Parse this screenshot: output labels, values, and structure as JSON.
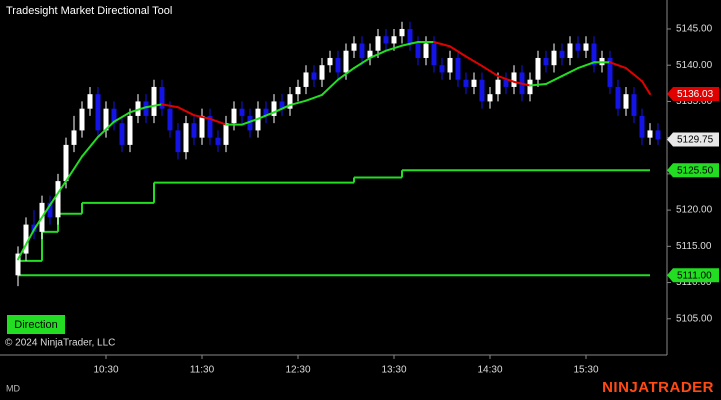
{
  "title": "Tradesight Market Directional Tool",
  "copyright": "© 2024 NinjaTrader, LLC",
  "direction_label": "Direction",
  "footer_left": "MD",
  "brand": "NINJATRADER",
  "chart_data": {
    "type": "candlestick",
    "up_color": "#ffffff",
    "down_color": "#1414e6",
    "open": [
      5111,
      5114,
      5118,
      5117,
      5121,
      5119,
      5124,
      5129,
      5131,
      5134,
      5136,
      5131,
      5134,
      5132,
      5129,
      5133,
      5135,
      5133,
      5137,
      5134,
      5131,
      5128,
      5132,
      5130,
      5133,
      5130,
      5129,
      5132,
      5134,
      5133,
      5131,
      5134,
      5133,
      5135,
      5134,
      5136,
      5137,
      5139,
      5138,
      5140,
      5141,
      5139,
      5142,
      5143,
      5141,
      5142,
      5144,
      5143,
      5144,
      5145,
      5143,
      5141,
      5143,
      5140,
      5139,
      5141,
      5138,
      5137,
      5138,
      5135,
      5136,
      5138,
      5137,
      5139,
      5136,
      5138,
      5141,
      5140,
      5142,
      5141,
      5143,
      5142,
      5143,
      5140,
      5141,
      5137,
      5134,
      5136,
      5133,
      5130,
      5131
    ],
    "high": [
      5115,
      5119,
      5120,
      5122,
      5122,
      5125,
      5130,
      5133,
      5135,
      5137,
      5137,
      5135,
      5135,
      5133,
      5134,
      5136,
      5136,
      5138,
      5138,
      5135,
      5132,
      5133,
      5133,
      5134,
      5134,
      5131,
      5133,
      5135,
      5135,
      5134,
      5135,
      5135,
      5136,
      5136,
      5137,
      5138,
      5140,
      5140,
      5141,
      5142,
      5142,
      5143,
      5144,
      5144,
      5143,
      5145,
      5145,
      5145,
      5146,
      5146,
      5144,
      5144,
      5144,
      5141,
      5142,
      5142,
      5139,
      5139,
      5139,
      5137,
      5139,
      5139,
      5140,
      5140,
      5139,
      5142,
      5142,
      5143,
      5143,
      5144,
      5144,
      5144,
      5144,
      5142,
      5142,
      5138,
      5137,
      5137,
      5134,
      5132,
      5132
    ],
    "low": [
      5109.5,
      5113,
      5116,
      5116,
      5118,
      5118,
      5123,
      5128,
      5130,
      5133,
      5130,
      5130,
      5131,
      5128,
      5128,
      5132,
      5132,
      5132,
      5133,
      5130,
      5127,
      5127,
      5129,
      5129,
      5129,
      5128,
      5128,
      5131,
      5132,
      5130,
      5130,
      5132,
      5132,
      5133,
      5133,
      5135,
      5136,
      5137,
      5137,
      5139,
      5138,
      5138,
      5141,
      5140,
      5140,
      5141,
      5142,
      5142,
      5143,
      5142,
      5140,
      5140,
      5139,
      5138,
      5138,
      5137,
      5136,
      5136,
      5134,
      5134,
      5135,
      5136,
      5136,
      5135,
      5135,
      5137,
      5139,
      5139,
      5140,
      5140,
      5141,
      5141,
      5139,
      5139,
      5136,
      5133,
      5133,
      5132,
      5129,
      5129,
      5129
    ],
    "close": [
      5114,
      5118,
      5117,
      5121,
      5119,
      5124,
      5129,
      5131,
      5134,
      5136,
      5131,
      5134,
      5132,
      5129,
      5133,
      5135,
      5133,
      5137,
      5134,
      5131,
      5128,
      5132,
      5130,
      5133,
      5130,
      5129,
      5132,
      5134,
      5133,
      5131,
      5134,
      5133,
      5135,
      5134,
      5136,
      5137,
      5139,
      5138,
      5140,
      5141,
      5139,
      5142,
      5143,
      5141,
      5142,
      5144,
      5143,
      5144,
      5145,
      5143,
      5141,
      5143,
      5140,
      5139,
      5141,
      5138,
      5137,
      5138,
      5135,
      5136,
      5138,
      5137,
      5139,
      5136,
      5138,
      5141,
      5140,
      5142,
      5141,
      5143,
      5142,
      5143,
      5140,
      5141,
      5137,
      5134,
      5136,
      5133,
      5130,
      5131,
      5129.75
    ],
    "ylim": [
      5100,
      5149
    ],
    "yticks": [
      {
        "value": 5145,
        "label": "5145.00"
      },
      {
        "value": 5140,
        "label": "5140.00"
      },
      {
        "value": 5135,
        "label": "5135.00"
      },
      {
        "value": 5130,
        "label": "5130.00"
      },
      {
        "value": 5125,
        "label": "5125.00"
      },
      {
        "value": 5120,
        "label": "5120.00"
      },
      {
        "value": 5115,
        "label": "5115.00"
      },
      {
        "value": 5110,
        "label": "5110.00"
      },
      {
        "value": 5105,
        "label": "5105.00"
      }
    ],
    "xticks": [
      {
        "value": 11,
        "label": "10:30"
      },
      {
        "value": 23,
        "label": "11:30"
      },
      {
        "value": 35,
        "label": "12:30"
      },
      {
        "value": 47,
        "label": "13:30"
      },
      {
        "value": 59,
        "label": "14:30"
      },
      {
        "value": 71,
        "label": "15:30"
      }
    ],
    "trend_line": {
      "rising_color": "#22dd22",
      "falling_color": "#e00000",
      "x": [
        0,
        2,
        4,
        6,
        8,
        10,
        12,
        14,
        16,
        18,
        20,
        22,
        24,
        26,
        28,
        30,
        32,
        34,
        36,
        38,
        40,
        42,
        44,
        46,
        48,
        50,
        52,
        54,
        56,
        58,
        60,
        62,
        64,
        66,
        68,
        70,
        72,
        74,
        76,
        78,
        79
      ],
      "values": [
        5113.2,
        5117.3,
        5120.7,
        5124,
        5127.4,
        5130.1,
        5132.2,
        5133.5,
        5134.2,
        5134.6,
        5134.2,
        5133.1,
        5132.6,
        5131.8,
        5131.8,
        5132.6,
        5133.5,
        5134.5,
        5135.1,
        5135.9,
        5138,
        5139.6,
        5141,
        5142,
        5142.7,
        5143.2,
        5143.2,
        5142.6,
        5141.2,
        5139.9,
        5138.5,
        5137.7,
        5137.2,
        5137.4,
        5138.5,
        5139.6,
        5140.4,
        5140.4,
        5139.6,
        5137.8,
        5136.03
      ]
    },
    "step_line": {
      "color": "#22dd22",
      "x": [
        0,
        3,
        5,
        8,
        17,
        42,
        48,
        79
      ],
      "values": [
        5113,
        5117,
        5119.5,
        5121,
        5123.8,
        5124.5,
        5125.5,
        5125.5
      ]
    },
    "level_line": {
      "color": "#22dd22",
      "value": 5111
    },
    "price_labels": [
      {
        "value": 5136.03,
        "label": "5136.03",
        "color": "#e00000"
      },
      {
        "value": 5129.75,
        "label": "5129.75",
        "color": "#e8e8e8"
      },
      {
        "value": 5125.5,
        "label": "5125.50",
        "color": "#22dd22"
      },
      {
        "value": 5111,
        "label": "5111.00",
        "color": "#22dd22"
      }
    ]
  }
}
